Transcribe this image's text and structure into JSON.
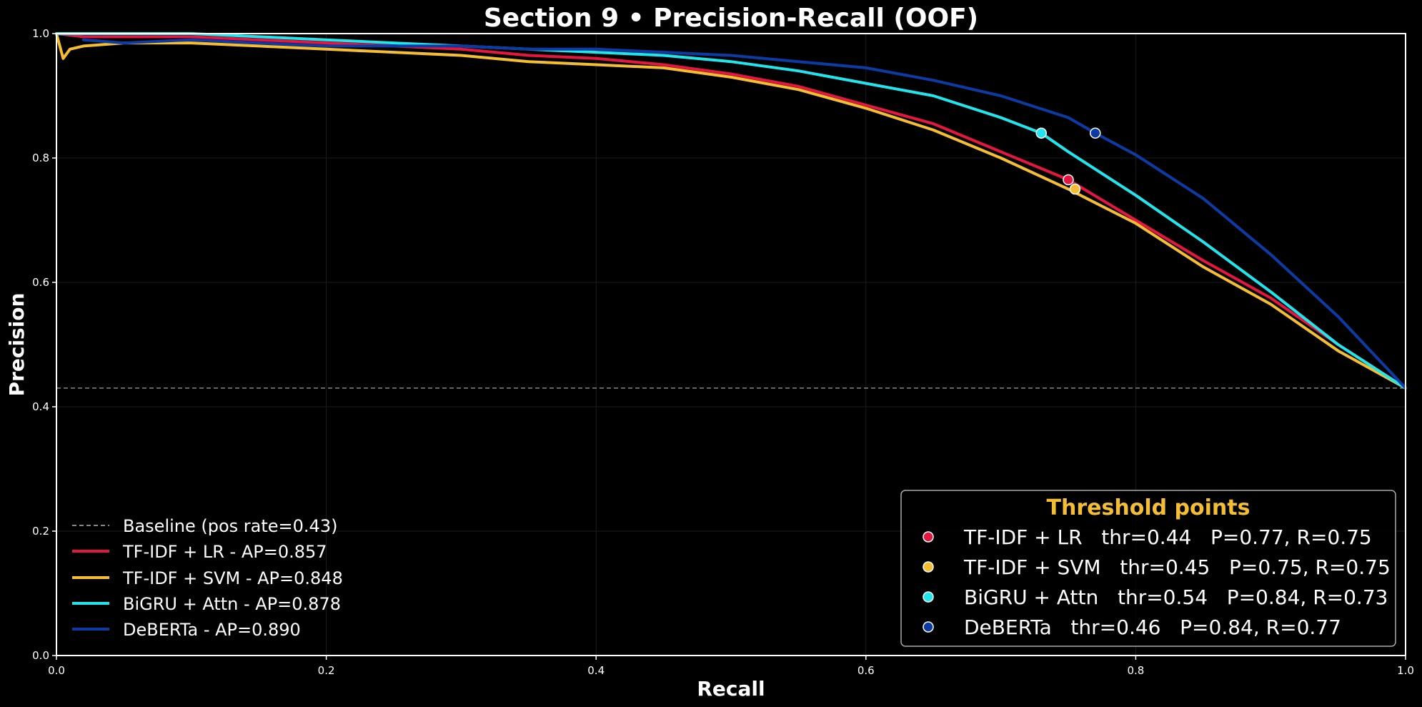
{
  "chart_data": {
    "type": "line",
    "title": "Section 9 • Precision-Recall (OOF)",
    "xlabel": "Recall",
    "ylabel": "Precision",
    "xlim": [
      0.0,
      1.0
    ],
    "ylim": [
      0.0,
      1.0
    ],
    "xticks": [
      "0.0",
      "0.2",
      "0.4",
      "0.6",
      "0.8",
      "1.0"
    ],
    "yticks": [
      "0.0",
      "0.2",
      "0.4",
      "0.6",
      "0.8",
      "1.0"
    ],
    "grid": true,
    "legend_position": "lower-left",
    "baseline": {
      "label": "Baseline (pos rate=0.43)",
      "y": 0.43,
      "color": "#888888"
    },
    "series": [
      {
        "name": "TF-IDF + LR - AP=0.857",
        "color": "#e5163f",
        "x": [
          0.0,
          0.02,
          0.05,
          0.1,
          0.15,
          0.2,
          0.25,
          0.3,
          0.35,
          0.4,
          0.45,
          0.5,
          0.55,
          0.6,
          0.65,
          0.7,
          0.75,
          0.8,
          0.85,
          0.9,
          0.95,
          1.0
        ],
        "y": [
          1.0,
          0.995,
          0.995,
          0.995,
          0.99,
          0.985,
          0.98,
          0.975,
          0.965,
          0.96,
          0.95,
          0.935,
          0.915,
          0.885,
          0.855,
          0.81,
          0.765,
          0.7,
          0.635,
          0.575,
          0.5,
          0.43
        ]
      },
      {
        "name": "TF-IDF + SVM - AP=0.848",
        "color": "#f5bd32",
        "x": [
          0.0,
          0.005,
          0.01,
          0.02,
          0.05,
          0.1,
          0.15,
          0.2,
          0.25,
          0.3,
          0.35,
          0.4,
          0.45,
          0.5,
          0.55,
          0.6,
          0.65,
          0.7,
          0.75,
          0.8,
          0.85,
          0.9,
          0.95,
          1.0
        ],
        "y": [
          1.0,
          0.96,
          0.975,
          0.98,
          0.985,
          0.985,
          0.98,
          0.975,
          0.97,
          0.965,
          0.955,
          0.95,
          0.945,
          0.93,
          0.91,
          0.88,
          0.845,
          0.8,
          0.75,
          0.695,
          0.625,
          0.565,
          0.49,
          0.43
        ]
      },
      {
        "name": "BiGRU + Attn - AP=0.878",
        "color": "#21e5ec",
        "x": [
          0.0,
          0.05,
          0.1,
          0.15,
          0.2,
          0.25,
          0.3,
          0.35,
          0.4,
          0.45,
          0.5,
          0.55,
          0.6,
          0.65,
          0.7,
          0.73,
          0.75,
          0.8,
          0.85,
          0.9,
          0.95,
          1.0
        ],
        "y": [
          1.0,
          1.0,
          1.0,
          0.995,
          0.99,
          0.985,
          0.98,
          0.975,
          0.97,
          0.965,
          0.955,
          0.94,
          0.92,
          0.9,
          0.865,
          0.84,
          0.81,
          0.74,
          0.665,
          0.585,
          0.5,
          0.43
        ]
      },
      {
        "name": "DeBERTa - AP=0.890",
        "color": "#0d3ba6",
        "x": [
          0.02,
          0.05,
          0.1,
          0.15,
          0.2,
          0.25,
          0.3,
          0.35,
          0.4,
          0.45,
          0.5,
          0.55,
          0.6,
          0.65,
          0.7,
          0.75,
          0.77,
          0.8,
          0.85,
          0.9,
          0.95,
          1.0
        ],
        "y": [
          0.99,
          0.985,
          0.99,
          0.985,
          0.98,
          0.98,
          0.98,
          0.975,
          0.975,
          0.97,
          0.965,
          0.955,
          0.945,
          0.925,
          0.9,
          0.865,
          0.84,
          0.805,
          0.735,
          0.645,
          0.545,
          0.43
        ]
      }
    ],
    "threshold_points": {
      "title": "Threshold points",
      "points": [
        {
          "label": "TF-IDF + LR   thr=0.44   P=0.77, R=0.75",
          "x": 0.75,
          "y": 0.765,
          "color": "#e5163f"
        },
        {
          "label": "TF-IDF + SVM   thr=0.45   P=0.75, R=0.75",
          "x": 0.755,
          "y": 0.75,
          "color": "#f5bd32"
        },
        {
          "label": "BiGRU + Attn   thr=0.54   P=0.84, R=0.73",
          "x": 0.73,
          "y": 0.84,
          "color": "#21e5ec"
        },
        {
          "label": "DeBERTa   thr=0.46   P=0.84, R=0.77",
          "x": 0.77,
          "y": 0.84,
          "color": "#0d3ba6"
        }
      ]
    }
  }
}
